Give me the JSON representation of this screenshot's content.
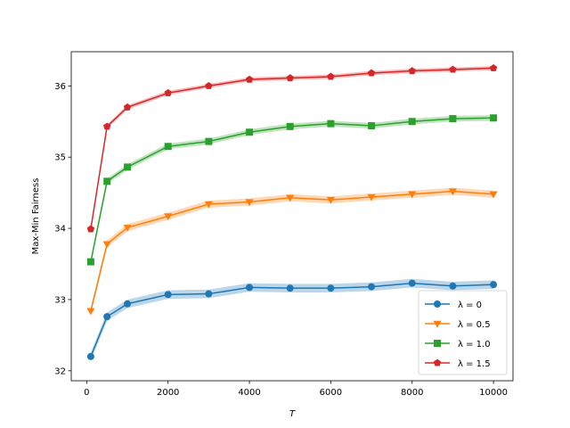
{
  "chart_data": {
    "type": "line",
    "xlabel": "T",
    "ylabel": "Max-Min Fairness",
    "xlim": [
      -380,
      10480
    ],
    "ylim": [
      31.86,
      36.48
    ],
    "xticks": [
      0,
      2000,
      4000,
      6000,
      8000,
      10000
    ],
    "yticks": [
      32,
      33,
      34,
      35,
      36
    ],
    "grid": false,
    "legend_position": "lower-right",
    "x": [
      100,
      500,
      1000,
      2000,
      3000,
      4000,
      5000,
      6000,
      7000,
      8000,
      9000,
      10000
    ],
    "series": [
      {
        "name": "λ = 0",
        "color": "#1f77b4",
        "marker": "circle",
        "values": [
          32.2,
          32.76,
          32.94,
          33.07,
          33.08,
          33.17,
          33.16,
          33.16,
          33.18,
          33.23,
          33.19,
          33.21
        ],
        "band": 0.06
      },
      {
        "name": "λ = 0.5",
        "color": "#ff7f0e",
        "marker": "triangle-down",
        "values": [
          32.84,
          33.78,
          34.01,
          34.17,
          34.34,
          34.37,
          34.43,
          34.4,
          34.44,
          34.48,
          34.52,
          34.48
        ],
        "band": 0.05
      },
      {
        "name": "λ = 1.0",
        "color": "#2ca02c",
        "marker": "square",
        "values": [
          33.53,
          34.66,
          34.86,
          35.15,
          35.22,
          35.35,
          35.43,
          35.47,
          35.44,
          35.5,
          35.54,
          35.55
        ],
        "band": 0.04
      },
      {
        "name": "λ = 1.5",
        "color": "#d62728",
        "marker": "pentagon",
        "values": [
          33.99,
          35.43,
          35.7,
          35.9,
          36.0,
          36.09,
          36.11,
          36.13,
          36.18,
          36.21,
          36.23,
          36.25
        ],
        "band": 0.03
      }
    ]
  }
}
